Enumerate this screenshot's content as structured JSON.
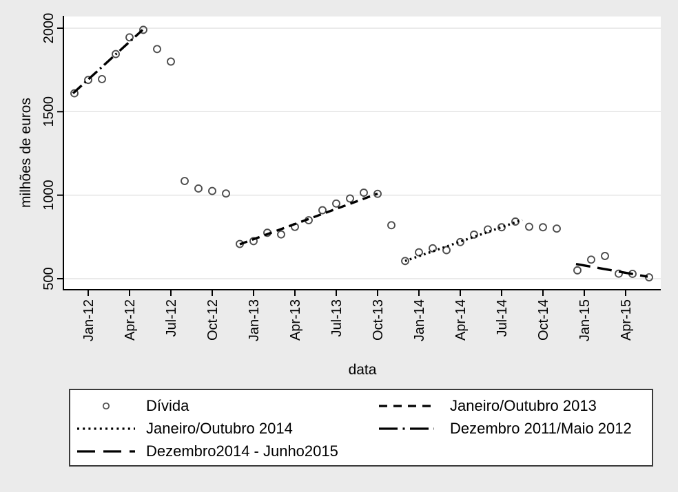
{
  "figure": {
    "xlabel": "data",
    "ylabel": "milhões de euros"
  },
  "legend": {
    "items": [
      {
        "label": "Dívida",
        "symbol": "open-circle-marker"
      },
      {
        "label": "Janeiro/Outubro 2013",
        "symbol": "dashed-line"
      },
      {
        "label": "Janeiro/Outubro 2014",
        "symbol": "dotted-line"
      },
      {
        "label": "Dezembro 2011/Maio 2012",
        "symbol": "dashdot-line"
      },
      {
        "label": "Dezembro2014 - Junho2015",
        "symbol": "longdash-line"
      }
    ]
  },
  "colors": {
    "background": "#ebebeb",
    "plot_background": "#ffffff",
    "gridline": "#e4e4e4",
    "axis": "#000000",
    "marker_stroke": "#4d4d4d",
    "fit_line": "#000000"
  },
  "chart_data": {
    "type": "scatter",
    "title": "",
    "xlabel": "data",
    "ylabel": "milhões de euros",
    "grid": "horizontal",
    "legend_position": "below",
    "x_unit": "months since Dec-2011",
    "xlim": [
      -0.8,
      42.5
    ],
    "ylim": [
      434,
      2070
    ],
    "y_ticks": [
      500,
      1000,
      1500,
      2000
    ],
    "x_ticks": [
      {
        "label": "Jan-12",
        "x": 1
      },
      {
        "label": "Apr-12",
        "x": 4
      },
      {
        "label": "Jul-12",
        "x": 7
      },
      {
        "label": "Oct-12",
        "x": 10
      },
      {
        "label": "Jan-13",
        "x": 13
      },
      {
        "label": "Apr-13",
        "x": 16
      },
      {
        "label": "Jul-13",
        "x": 19
      },
      {
        "label": "Oct-13",
        "x": 22
      },
      {
        "label": "Jan-14",
        "x": 25
      },
      {
        "label": "Apr-14",
        "x": 28
      },
      {
        "label": "Jul-14",
        "x": 31
      },
      {
        "label": "Oct-14",
        "x": 34
      },
      {
        "label": "Jan-15",
        "x": 37
      },
      {
        "label": "Apr-15",
        "x": 40
      }
    ],
    "series": [
      {
        "name": "Dívida",
        "type": "scatter",
        "marker": "open-circle",
        "points": [
          [
            "Dec-11",
            0,
            1610
          ],
          [
            "Jan-12",
            1,
            1690
          ],
          [
            "Feb-12",
            2,
            1695
          ],
          [
            "Mar-12",
            3,
            1845
          ],
          [
            "Apr-12",
            4,
            1945
          ],
          [
            "May-12",
            5,
            1990
          ],
          [
            "Jun-12",
            6,
            1875
          ],
          [
            "Jul-12",
            7,
            1800
          ],
          [
            "Aug-12",
            8,
            1085
          ],
          [
            "Sep-12",
            9,
            1040
          ],
          [
            "Oct-12",
            10,
            1025
          ],
          [
            "Nov-12",
            11,
            1010
          ],
          [
            "Dec-12",
            12,
            708
          ],
          [
            "Jan-13",
            13,
            725
          ],
          [
            "Feb-13",
            14,
            775
          ],
          [
            "Mar-13",
            15,
            765
          ],
          [
            "Apr-13",
            16,
            810
          ],
          [
            "May-13",
            17,
            850
          ],
          [
            "Jun-13",
            18,
            910
          ],
          [
            "Jul-13",
            19,
            950
          ],
          [
            "Aug-13",
            20,
            980
          ],
          [
            "Sep-13",
            21,
            1015
          ],
          [
            "Oct-13",
            22,
            1008
          ],
          [
            "Nov-13",
            23,
            820
          ],
          [
            "Dec-13",
            24,
            606
          ],
          [
            "Jan-14",
            25,
            658
          ],
          [
            "Feb-14",
            26,
            682
          ],
          [
            "Mar-14",
            27,
            671
          ],
          [
            "Apr-14",
            28,
            719
          ],
          [
            "May-14",
            29,
            764
          ],
          [
            "Jun-14",
            30,
            795
          ],
          [
            "Jul-14",
            31,
            808
          ],
          [
            "Aug-14",
            32,
            842
          ],
          [
            "Sep-14",
            33,
            811
          ],
          [
            "Oct-14",
            34,
            808
          ],
          [
            "Nov-14",
            35,
            800
          ],
          [
            "Dec-14",
            36.5,
            550
          ],
          [
            "Jan-15",
            37.5,
            614
          ],
          [
            "Feb-15",
            38.5,
            636
          ],
          [
            "Mar-15",
            39.5,
            530
          ],
          [
            "Apr-15",
            40.5,
            529
          ],
          [
            "May-15",
            41.7,
            508
          ]
        ]
      }
    ],
    "fit_lines": [
      {
        "name": "Dezembro 2011/Maio 2012",
        "style": "dashdot",
        "x1": -0.1,
        "v1": 1610,
        "x2": 4.95,
        "v2": 1990
      },
      {
        "name": "Janeiro/Outubro 2013",
        "style": "dashed",
        "x1": 12,
        "v1": 706,
        "x2": 22,
        "v2": 1009
      },
      {
        "name": "Janeiro/Outubro 2014",
        "style": "dotted",
        "x1": 24,
        "v1": 606,
        "x2": 32.5,
        "v2": 852
      },
      {
        "name": "Dezembro2014 - Junho2015",
        "style": "longdash",
        "x1": 36.4,
        "v1": 588,
        "x2": 41.6,
        "v2": 512
      }
    ]
  }
}
